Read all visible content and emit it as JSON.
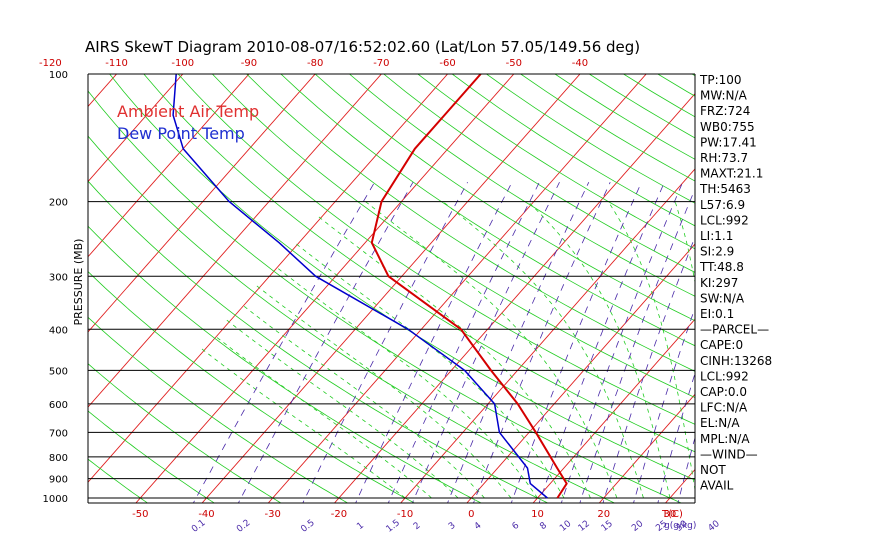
{
  "chart_data": {
    "type": "line",
    "title": "AIRS SkewT Diagram 2010-08-07/16:52:02.60 (Lat/Lon 57.05/149.56 deg)",
    "ylabel": "PRESSURE (MB)",
    "top_axis_ticks": [
      "-120",
      "-110",
      "-100",
      "-90",
      "-80",
      "-70",
      "-60",
      "-50",
      "-40"
    ],
    "bottom_axis_ticks": [
      "-50",
      "-40",
      "-30",
      "-20",
      "-10",
      "0",
      "10",
      "20",
      "30"
    ],
    "bottom_axis_unit": "T(C)",
    "mixing_ratio_labels": [
      "0.1",
      "0.2",
      "0.5",
      "1",
      "1.5",
      "2",
      "3",
      "4",
      "6",
      "8",
      "10",
      "12",
      "15",
      "20",
      "25",
      "30",
      "40"
    ],
    "mixing_ratio_unit": "g(g/kg)",
    "pressure_levels": [
      {
        "p": 100,
        "label": "100"
      },
      {
        "p": 200,
        "label": "200"
      },
      {
        "p": 300,
        "label": "300"
      },
      {
        "p": 400,
        "label": "400"
      },
      {
        "p": 500,
        "label": "500"
      },
      {
        "p": 600,
        "label": "600"
      },
      {
        "p": 700,
        "label": "700"
      },
      {
        "p": 800,
        "label": "800"
      },
      {
        "p": 900,
        "label": "900"
      },
      {
        "p": 1000,
        "label": "1000"
      }
    ],
    "legend": [
      {
        "label": "Ambient Air Temp",
        "color": "#e03030"
      },
      {
        "label": "Dew Point Temp",
        "color": "#1f2fd0"
      }
    ],
    "series": [
      {
        "name": "Ambient Air Temp",
        "color": "#d40000",
        "points": [
          {
            "p": 1000,
            "t": 13.0
          },
          {
            "p": 925,
            "t": 12.5
          },
          {
            "p": 850,
            "t": 9.0
          },
          {
            "p": 700,
            "t": 1.0
          },
          {
            "p": 600,
            "t": -5.5
          },
          {
            "p": 500,
            "t": -14.0
          },
          {
            "p": 400,
            "t": -24.0
          },
          {
            "p": 300,
            "t": -42.0
          },
          {
            "p": 250,
            "t": -49.0
          },
          {
            "p": 200,
            "t": -53.0
          },
          {
            "p": 150,
            "t": -55.0
          },
          {
            "p": 125,
            "t": -55.0
          },
          {
            "p": 100,
            "t": -55.0
          }
        ]
      },
      {
        "name": "Dew Point Temp",
        "color": "#0000cc",
        "points": [
          {
            "p": 1000,
            "t": 11.5
          },
          {
            "p": 925,
            "t": 7.0
          },
          {
            "p": 850,
            "t": 4.5
          },
          {
            "p": 700,
            "t": -4.5
          },
          {
            "p": 600,
            "t": -9.0
          },
          {
            "p": 500,
            "t": -18.0
          },
          {
            "p": 400,
            "t": -32.0
          },
          {
            "p": 300,
            "t": -53.0
          },
          {
            "p": 250,
            "t": -63.0
          },
          {
            "p": 200,
            "t": -76.0
          },
          {
            "p": 150,
            "t": -90.0
          },
          {
            "p": 125,
            "t": -96.0
          },
          {
            "p": 100,
            "t": -101.0
          }
        ]
      }
    ],
    "indices": [
      "TP:100",
      "MW:N/A",
      "FRZ:724",
      "WB0:755",
      "PW:17.41",
      "RH:73.7",
      "MAXT:21.1",
      "TH:5463",
      "L57:6.9",
      "LCL:992",
      "LI:1.1",
      "SI:2.9",
      "TT:48.8",
      "KI:297",
      "SW:N/A",
      "EI:0.1",
      "—PARCEL—",
      "CAPE:0",
      "CINH:13268",
      "LCL:992",
      "CAP:0.0",
      "LFC:N/A",
      "EL:N/A",
      "MPL:N/A",
      "—WIND—",
      "NOT",
      "AVAIL"
    ],
    "colors": {
      "isotherm": "#e02020",
      "dry_adiabat": "#22cc22",
      "moist_adiabat": "#22cc22",
      "mixing_ratio": "#4a2aa8",
      "isobar": "#000000",
      "axis_label": "#cc0000"
    }
  }
}
